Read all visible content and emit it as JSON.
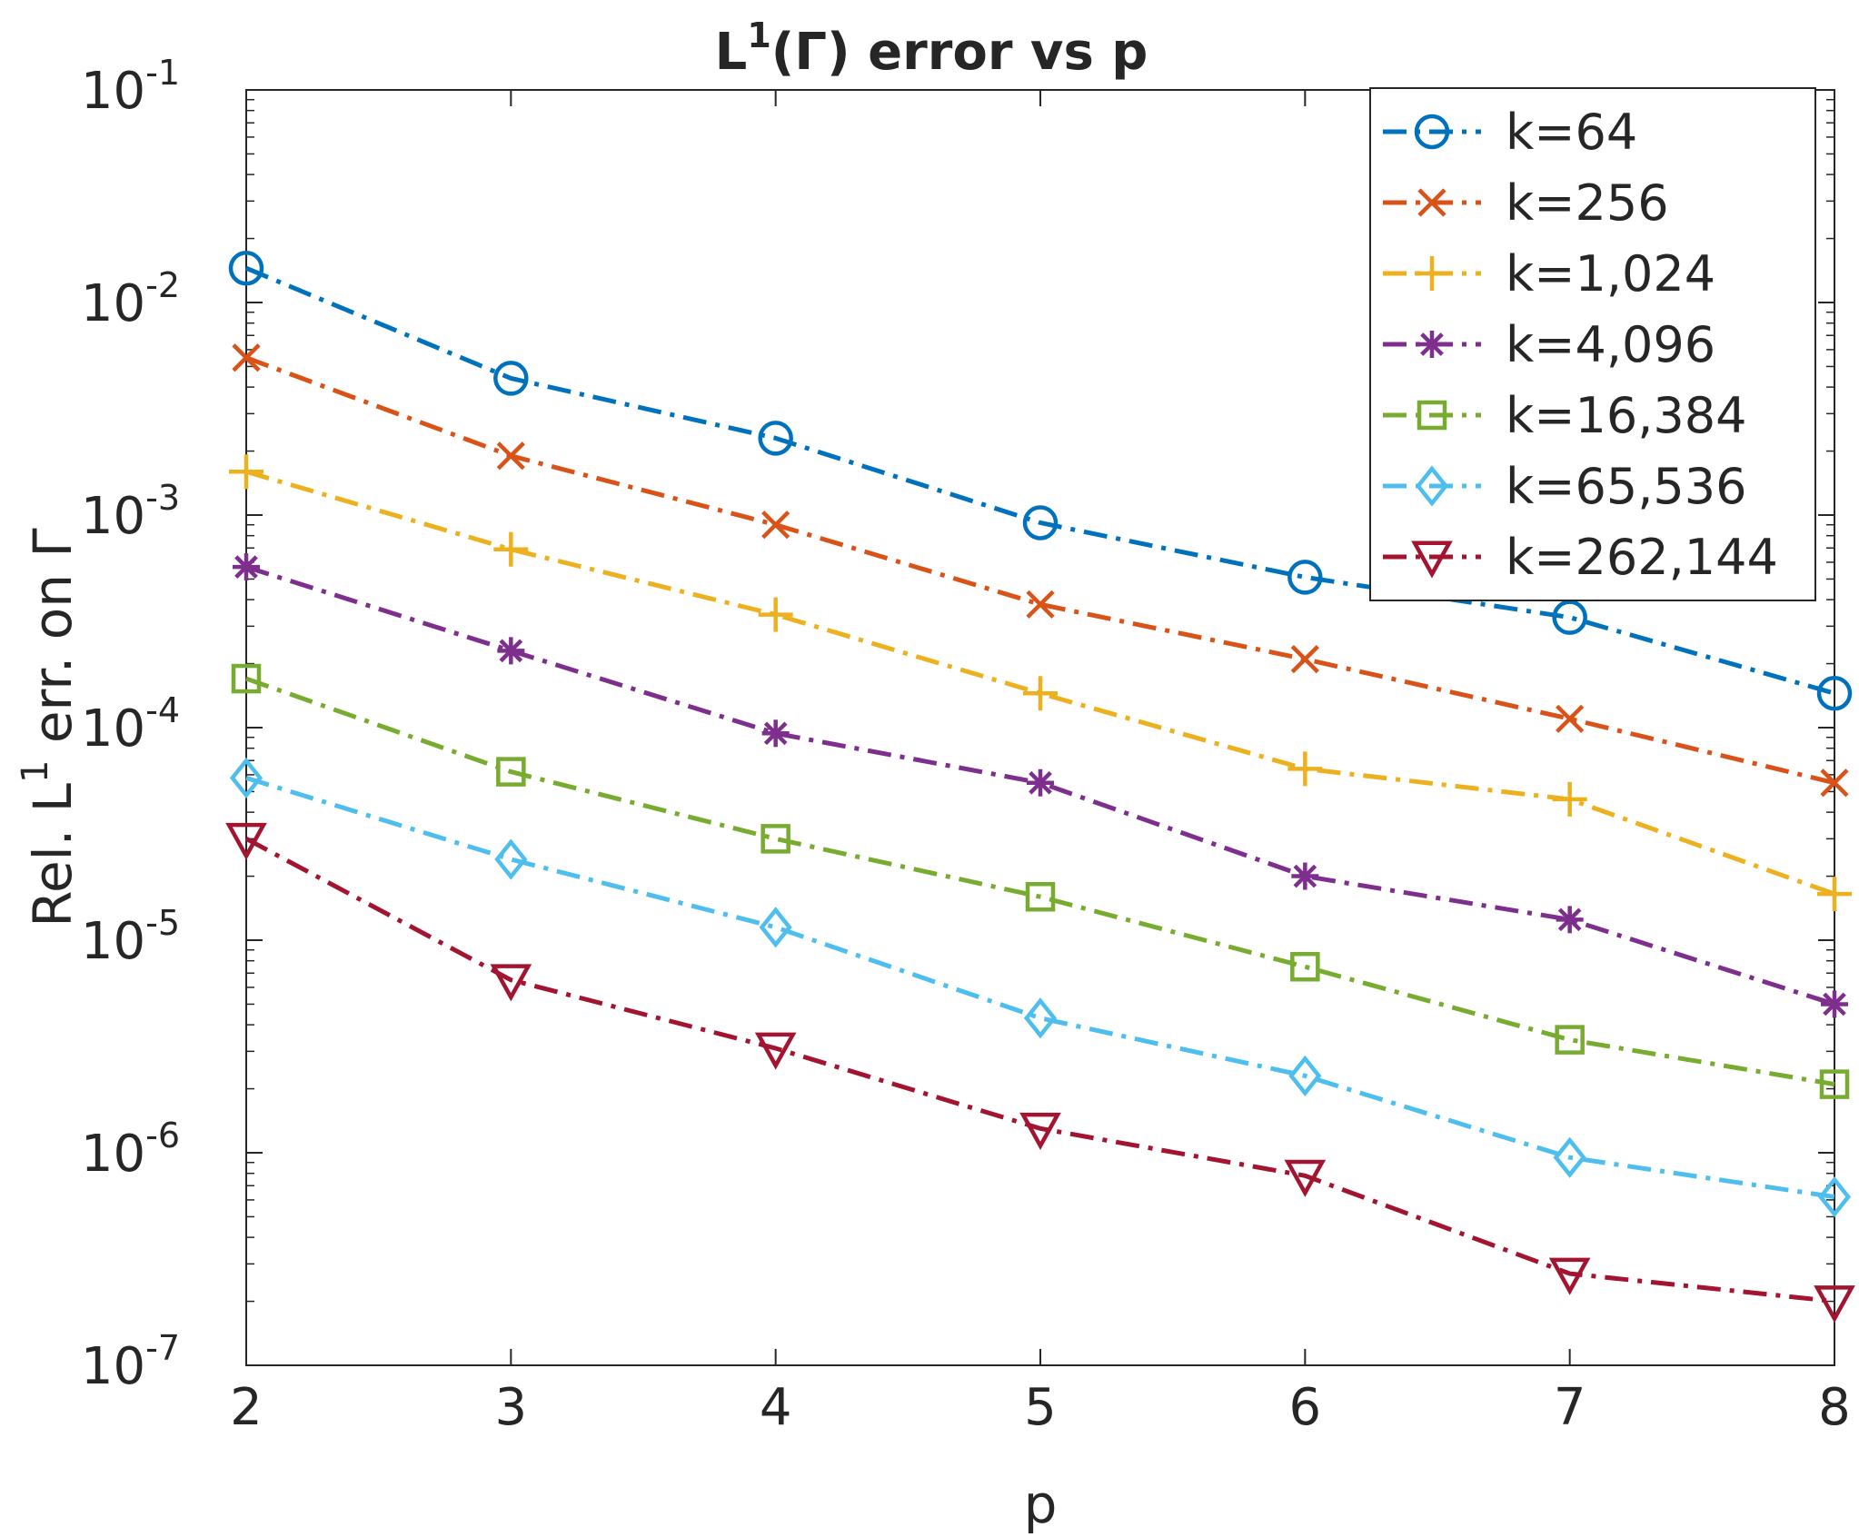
{
  "chart_data": {
    "type": "line",
    "title_main": "L",
    "title_sup": "1",
    "title_rest": "(Γ) error vs p",
    "xlabel": "p",
    "ylabel_pre": "Rel. L",
    "ylabel_sup": "1",
    "ylabel_post": " err. on Γ",
    "yscale": "log",
    "xlim": [
      2,
      8
    ],
    "ylim": [
      1e-07,
      0.1
    ],
    "grid": false,
    "legend_position": "top-right",
    "x": [
      2,
      3,
      4,
      5,
      6,
      7,
      8
    ],
    "x_ticks": [
      "2",
      "3",
      "4",
      "5",
      "6",
      "7",
      "8"
    ],
    "y_ticks": [
      {
        "base": "10",
        "exp": "-7",
        "value": 1e-07
      },
      {
        "base": "10",
        "exp": "-6",
        "value": 1e-06
      },
      {
        "base": "10",
        "exp": "-5",
        "value": 1e-05
      },
      {
        "base": "10",
        "exp": "-4",
        "value": 0.0001
      },
      {
        "base": "10",
        "exp": "-3",
        "value": 0.001
      },
      {
        "base": "10",
        "exp": "-2",
        "value": 0.01
      },
      {
        "base": "10",
        "exp": "-1",
        "value": 0.1
      }
    ],
    "series": [
      {
        "name": "k=64",
        "color": "#0072BD",
        "marker": "circle",
        "values": [
          0.0145,
          0.0044,
          0.0023,
          0.00092,
          0.00051,
          0.00033,
          0.000145
        ]
      },
      {
        "name": "k=256",
        "color": "#D95319",
        "marker": "x",
        "values": [
          0.0055,
          0.0019,
          0.0009,
          0.00038,
          0.00021,
          0.00011,
          5.5e-05
        ]
      },
      {
        "name": "k=1,024",
        "color": "#EDB120",
        "marker": "plus",
        "values": [
          0.0016,
          0.00069,
          0.00034,
          0.000145,
          6.4e-05,
          4.6e-05,
          1.65e-05
        ]
      },
      {
        "name": "k=4,096",
        "color": "#7E2F8E",
        "marker": "asterisk",
        "values": [
          0.00057,
          0.00023,
          9.4e-05,
          5.5e-05,
          2e-05,
          1.25e-05,
          5e-06
        ]
      },
      {
        "name": "k=16,384",
        "color": "#77AC30",
        "marker": "square",
        "values": [
          0.00017,
          6.2e-05,
          3e-05,
          1.6e-05,
          7.5e-06,
          3.4e-06,
          2.1e-06
        ]
      },
      {
        "name": "k=65,536",
        "color": "#4DBEEE",
        "marker": "diamond",
        "values": [
          5.8e-05,
          2.4e-05,
          1.15e-05,
          4.3e-06,
          2.3e-06,
          9.5e-07,
          6.2e-07
        ]
      },
      {
        "name": "k=262,144",
        "color": "#A2142F",
        "marker": "triangle-down",
        "values": [
          3e-05,
          6.5e-06,
          3.1e-06,
          1.3e-06,
          7.8e-07,
          2.7e-07,
          2e-07
        ]
      }
    ]
  }
}
